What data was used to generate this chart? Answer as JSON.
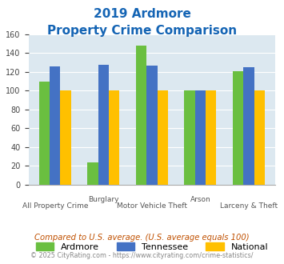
{
  "title_line1": "2019 Ardmore",
  "title_line2": "Property Crime Comparison",
  "categories": [
    "All Property Crime",
    "Burglary",
    "Motor Vehicle Theft",
    "Arson",
    "Larceny & Theft"
  ],
  "top_labels": [
    "",
    "Burglary",
    "",
    "Arson",
    ""
  ],
  "bottom_labels": [
    "All Property Crime",
    "",
    "Motor Vehicle Theft",
    "",
    "Larceny & Theft"
  ],
  "ardmore": [
    110,
    24,
    148,
    100,
    121
  ],
  "tennessee": [
    126,
    128,
    127,
    100,
    125
  ],
  "national": [
    100,
    100,
    100,
    100,
    100
  ],
  "color_ardmore": "#6abf40",
  "color_tennessee": "#4472c4",
  "color_national": "#ffc000",
  "color_title": "#1464b4",
  "color_bg": "#dce8f0",
  "color_footnote": "#888888",
  "color_compare": "#c05000",
  "ylim": [
    0,
    160
  ],
  "yticks": [
    0,
    20,
    40,
    60,
    80,
    100,
    120,
    140,
    160
  ],
  "footnote1": "Compared to U.S. average. (U.S. average equals 100)",
  "footnote2": "© 2025 CityRating.com - https://www.cityrating.com/crime-statistics/"
}
